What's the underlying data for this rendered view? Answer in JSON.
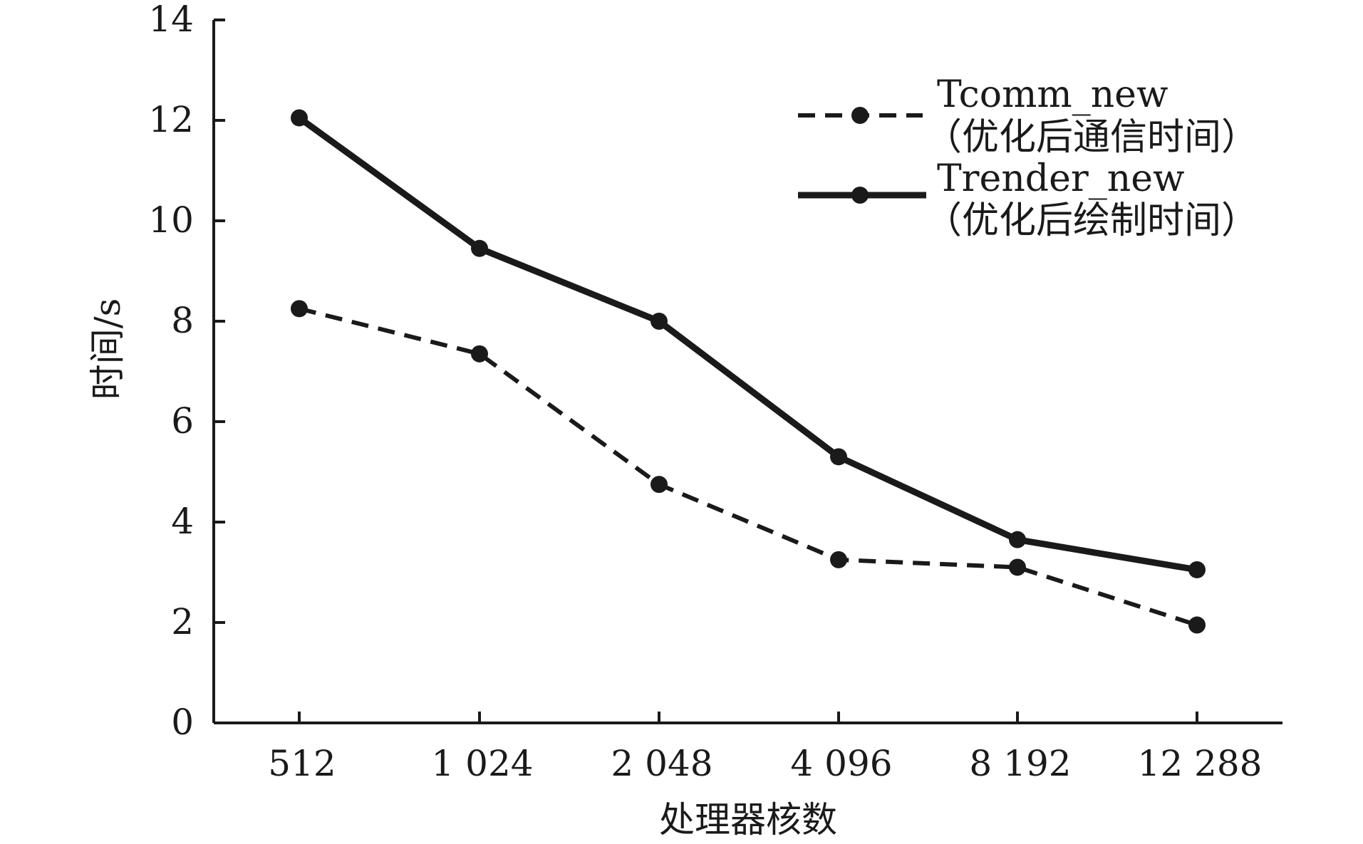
{
  "chart_data": {
    "type": "line",
    "title": "",
    "xlabel": "处理器核数",
    "ylabel": "时间/s",
    "categories": [
      "512",
      "1 024",
      "2 048",
      "4 096",
      "8 192",
      "12 288"
    ],
    "yticks": [
      "0",
      "2",
      "4",
      "6",
      "8",
      "10",
      "12",
      "14"
    ],
    "ylim": [
      0,
      14
    ],
    "grid": false,
    "legend_position": "top-right",
    "series": [
      {
        "name": "Tcomm_new",
        "name_sub": "（优化后通信时间）",
        "style": "dashed",
        "values": [
          8.25,
          7.35,
          4.75,
          3.25,
          3.1,
          1.95
        ]
      },
      {
        "name": "Trender_new",
        "name_sub": "（优化后绘制时间）",
        "style": "solid",
        "values": [
          12.05,
          9.45,
          8.0,
          5.3,
          3.65,
          3.05
        ]
      }
    ],
    "colors": {
      "ink": "#1a1a1a",
      "background": "#ffffff"
    }
  }
}
